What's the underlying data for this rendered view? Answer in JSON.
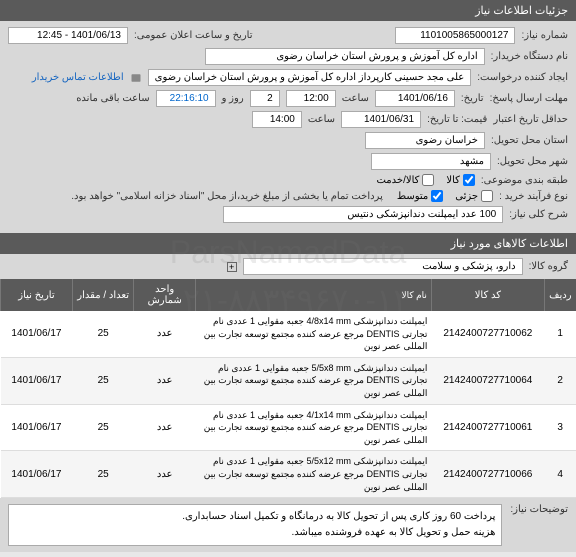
{
  "sections": {
    "need_info": "جزئیات اطلاعات نیاز",
    "goods_info": "اطلاعات کالاهای مورد نیاز"
  },
  "form": {
    "need_number_label": "شماره نیاز:",
    "need_number": "1101005865000127",
    "announce_label": "تاریخ و ساعت اعلان عمومی:",
    "announce_value": "1401/06/13 - 12:45",
    "buyer_org_label": "نام دستگاه خریدار:",
    "buyer_org": "اداره کل آموزش و پرورش استان خراسان رضوی",
    "requester_label": "ایجاد کننده درخواست:",
    "requester": "علی مجد حسینی کارپرداز اداره کل آموزش و پرورش استان خراسان رضوی",
    "contact_info": "اطلاعات تماس خریدار",
    "response_deadline_label": "مهلت ارسال پاسخ:",
    "response_deadline_until": "تاریخ:",
    "response_date": "1401/06/16",
    "time_label": "ساعت",
    "response_time": "12:00",
    "days_label": "روز و",
    "days_value": "2",
    "time_left_label": "ساعت باقی مانده",
    "time_left": "22:16:10",
    "validity_label": "حداقل تاریخ اعتبار",
    "validity_until": "قیمت: تا تاریخ:",
    "validity_date": "1401/06/31",
    "validity_time": "14:00",
    "province_label": "استان محل تحویل:",
    "province": "خراسان رضوی",
    "city_label": "شهر محل تحویل:",
    "city": "مشهد",
    "category_label": "طبقه بندی موضوعی:",
    "cat_goods": "کالا",
    "cat_service": "کالا/خدمت",
    "purchase_type_label": "نوع فرآیند خرید :",
    "purchase_type_small": "جزئی",
    "purchase_type_medium": "متوسط",
    "payment_note": "پرداخت تمام یا بخشی از مبلغ خرید،از محل \"اسناد خزانه اسلامی\" خواهد بود.",
    "need_desc_label": "شرح کلی نیاز:",
    "need_desc": "100 عدد ایمپلنت دندانپزشکی دنتیس",
    "goods_group_label": "گروه کالا:",
    "goods_group": "دارو، پزشکی و سلامت",
    "explanations_label": "توضیحات نیاز:",
    "explanation_line1": "پرداخت 60 روز کاری پس از تحویل کالا به درمانگاه و تکمیل اسناد حسابداری.",
    "explanation_line2": "هزینه حمل و تحویل کالا به عهده فروشنده میباشد."
  },
  "table": {
    "headers": {
      "idx": "ردیف",
      "code": "کد کالا",
      "name": "نام کالا",
      "unit": "واحد شمارش",
      "qty": "تعداد / مقدار",
      "date": "تاریخ نیاز"
    },
    "rows": [
      {
        "idx": "1",
        "code": "2142400727710062",
        "name": "ایمپلنت دندانپزشکی 4/8x14 mm جعبه مقوایی 1 عددی نام تجارتی DENTIS مرجع عرضه کننده مجتمع توسعه تجارت بین المللی عصر نوین",
        "unit": "عدد",
        "qty": "25",
        "date": "1401/06/17"
      },
      {
        "idx": "2",
        "code": "2142400727710064",
        "name": "ایمپلنت دندانپزشکی 5/5x8 mm جعبه مقوایی 1 عددی نام تجارتی DENTIS مرجع عرضه کننده مجتمع توسعه تجارت بین المللی عصر نوین",
        "unit": "عدد",
        "qty": "25",
        "date": "1401/06/17"
      },
      {
        "idx": "3",
        "code": "2142400727710061",
        "name": "ایمپلنت دندانپزشکی 4/1x14 mm جعبه مقوایی 1 عددی نام تجارتی DENTIS مرجع عرضه کننده مجتمع توسعه تجارت بین المللی عصر نوین",
        "unit": "عدد",
        "qty": "25",
        "date": "1401/06/17"
      },
      {
        "idx": "4",
        "code": "2142400727710066",
        "name": "ایمپلنت دندانپزشکی 5/5x12 mm جعبه مقوایی 1 عددی نام تجارتی DENTIS مرجع عرضه کننده مجتمع توسعه تجارت بین المللی عصر نوین",
        "unit": "عدد",
        "qty": "25",
        "date": "1401/06/17"
      }
    ]
  },
  "watermark": {
    "line1": "ParsNamadData",
    "line2": "۰۲۱-۸۸۳۴۹۶۷۰-۱۴"
  },
  "colors": {
    "header_bg": "#5a5a5a",
    "form_bg": "#d8d8d8",
    "link": "#1565c0",
    "time_highlight": "#0066cc"
  }
}
